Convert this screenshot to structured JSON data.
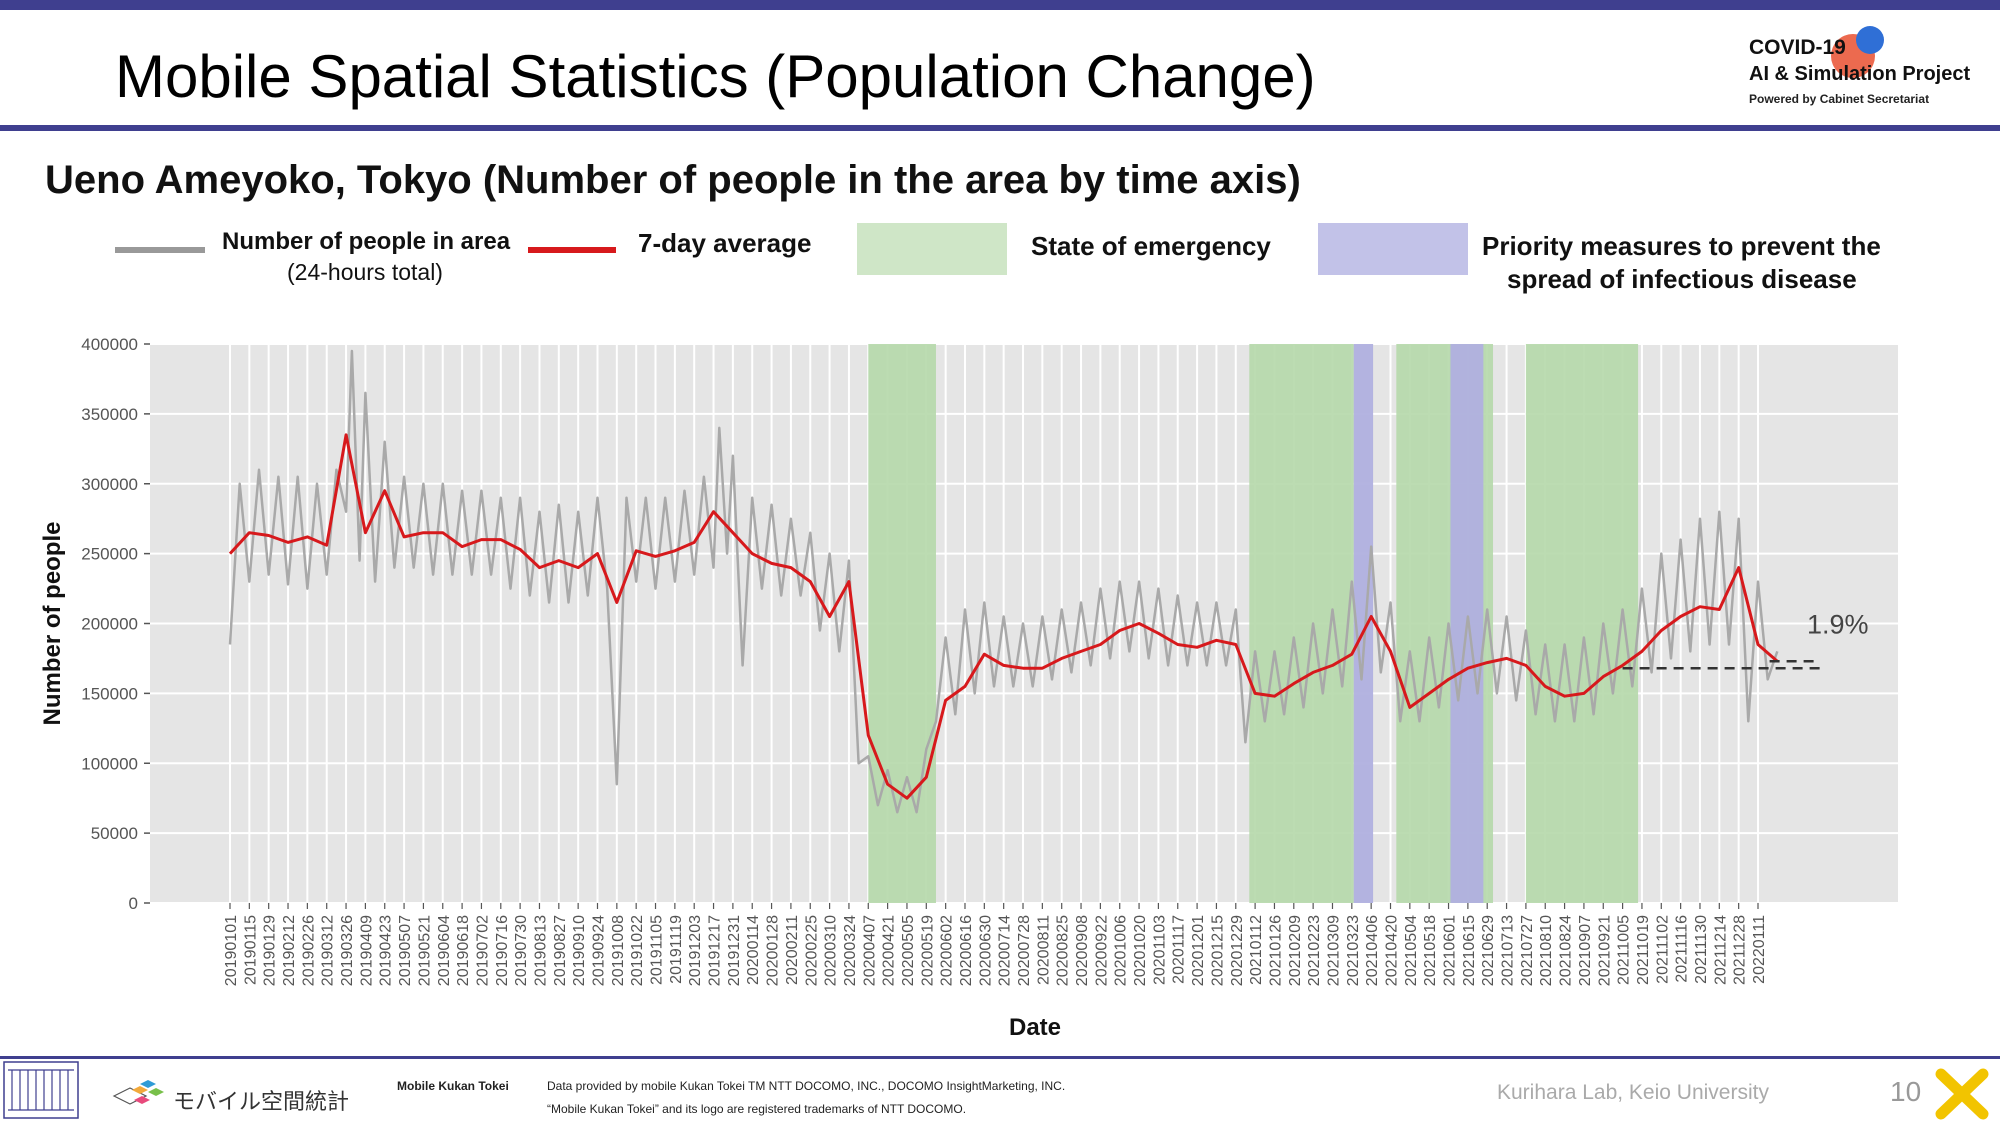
{
  "header": {
    "title": "Mobile Spatial Statistics (Population Change)",
    "logo_line1": "COVID-19",
    "logo_line2": "AI & Simulation Project",
    "logo_line3": "Powered by Cabinet Secretariat"
  },
  "subtitle": "Ueno Ameyoko, Tokyo (Number of people in the area by time axis)",
  "legend": {
    "people_label": "Number of people in area",
    "people_sub": "(24-hours total)",
    "avg_label": "7-day average",
    "emergency_label": "State of emergency",
    "priority_label_1": "Priority measures to prevent the",
    "priority_label_2": "spread of infectious disease"
  },
  "colors": {
    "daily_line": "#a9a9a9",
    "avg_line": "#d7191c",
    "emergency": "#b5d8aa",
    "priority": "#b0b0df",
    "plot_bg": "#e5e5e5",
    "accent": "#3f3f8f"
  },
  "chart_data": {
    "type": "line",
    "xlabel": "Date",
    "ylabel": "Number of people",
    "ylim": [
      0,
      400000
    ],
    "yticks": [
      "0",
      "50000",
      "100000",
      "150000",
      "200000",
      "250000",
      "300000",
      "350000",
      "400000"
    ],
    "grid": true,
    "annotation": "1.9%",
    "baseline_value": 168000,
    "xticks": [
      "20190101",
      "20190115",
      "20190129",
      "20190212",
      "20190226",
      "20190312",
      "20190326",
      "20190409",
      "20190423",
      "20190507",
      "20190521",
      "20190604",
      "20190618",
      "20190702",
      "20190716",
      "20190730",
      "20190813",
      "20190827",
      "20190910",
      "20190924",
      "20191008",
      "20191022",
      "20191105",
      "20191119",
      "20191203",
      "20191217",
      "20191231",
      "20200114",
      "20200128",
      "20200211",
      "20200225",
      "20200310",
      "20200324",
      "20200407",
      "20200421",
      "20200505",
      "20200519",
      "20200602",
      "20200616",
      "20200630",
      "20200714",
      "20200728",
      "20200811",
      "20200825",
      "20200908",
      "20200922",
      "20201006",
      "20201020",
      "20201103",
      "20201117",
      "20201201",
      "20201215",
      "20201229",
      "20210112",
      "20210126",
      "20210209",
      "20210223",
      "20210309",
      "20210323",
      "20210406",
      "20210420",
      "20210504",
      "20210518",
      "20210601",
      "20210615",
      "20210629",
      "20210713",
      "20210727",
      "20210810",
      "20210824",
      "20210907",
      "20210921",
      "20211005",
      "20211019",
      "20211102",
      "20211116",
      "20211130",
      "20211214",
      "20211228",
      "20220111"
    ],
    "emergency_periods": [
      [
        33.0,
        36.5
      ],
      [
        52.7,
        58.1
      ],
      [
        60.3,
        65.3
      ],
      [
        67.0,
        72.8
      ]
    ],
    "priority_periods": [
      [
        58.1,
        59.1
      ],
      [
        63.1,
        64.8
      ]
    ],
    "series": [
      {
        "name": "7-day average",
        "points": [
          [
            0,
            250000
          ],
          [
            1,
            265000
          ],
          [
            2,
            263000
          ],
          [
            3,
            258000
          ],
          [
            4,
            262000
          ],
          [
            5,
            256000
          ],
          [
            6,
            335000
          ],
          [
            7,
            265000
          ],
          [
            8,
            295000
          ],
          [
            9,
            262000
          ],
          [
            10,
            265000
          ],
          [
            11,
            265000
          ],
          [
            12,
            255000
          ],
          [
            13,
            260000
          ],
          [
            14,
            260000
          ],
          [
            15,
            253000
          ],
          [
            16,
            240000
          ],
          [
            17,
            245000
          ],
          [
            18,
            240000
          ],
          [
            19,
            250000
          ],
          [
            20,
            215000
          ],
          [
            21,
            252000
          ],
          [
            22,
            248000
          ],
          [
            23,
            252000
          ],
          [
            24,
            258000
          ],
          [
            25,
            280000
          ],
          [
            26,
            265000
          ],
          [
            27,
            250000
          ],
          [
            28,
            243000
          ],
          [
            29,
            240000
          ],
          [
            30,
            230000
          ],
          [
            31,
            205000
          ],
          [
            32,
            230000
          ],
          [
            33,
            120000
          ],
          [
            34,
            85000
          ],
          [
            35,
            75000
          ],
          [
            36,
            90000
          ],
          [
            37,
            145000
          ],
          [
            38,
            155000
          ],
          [
            39,
            178000
          ],
          [
            40,
            170000
          ],
          [
            41,
            168000
          ],
          [
            42,
            168000
          ],
          [
            43,
            175000
          ],
          [
            44,
            180000
          ],
          [
            45,
            185000
          ],
          [
            46,
            195000
          ],
          [
            47,
            200000
          ],
          [
            48,
            193000
          ],
          [
            49,
            185000
          ],
          [
            50,
            183000
          ],
          [
            51,
            188000
          ],
          [
            52,
            185000
          ],
          [
            53,
            150000
          ],
          [
            54,
            148000
          ],
          [
            55,
            157000
          ],
          [
            56,
            165000
          ],
          [
            57,
            170000
          ],
          [
            58,
            178000
          ],
          [
            59,
            205000
          ],
          [
            60,
            180000
          ],
          [
            61,
            140000
          ],
          [
            62,
            150000
          ],
          [
            63,
            160000
          ],
          [
            64,
            168000
          ],
          [
            65,
            172000
          ],
          [
            66,
            175000
          ],
          [
            67,
            170000
          ],
          [
            68,
            155000
          ],
          [
            69,
            148000
          ],
          [
            70,
            150000
          ],
          [
            71,
            162000
          ],
          [
            72,
            170000
          ],
          [
            73,
            180000
          ],
          [
            74,
            195000
          ],
          [
            75,
            205000
          ],
          [
            76,
            212000
          ],
          [
            77,
            210000
          ],
          [
            78,
            240000
          ],
          [
            79,
            185000
          ],
          [
            80,
            173000
          ]
        ]
      },
      {
        "name": "Number of people in area",
        "points": [
          [
            0,
            185000
          ],
          [
            0.5,
            300000
          ],
          [
            1,
            230000
          ],
          [
            1.5,
            310000
          ],
          [
            2,
            235000
          ],
          [
            2.5,
            305000
          ],
          [
            3,
            228000
          ],
          [
            3.5,
            305000
          ],
          [
            4,
            225000
          ],
          [
            4.5,
            300000
          ],
          [
            5,
            235000
          ],
          [
            5.5,
            310000
          ],
          [
            6,
            280000
          ],
          [
            6.3,
            395000
          ],
          [
            6.7,
            245000
          ],
          [
            7,
            365000
          ],
          [
            7.5,
            230000
          ],
          [
            8,
            330000
          ],
          [
            8.5,
            240000
          ],
          [
            9,
            305000
          ],
          [
            9.5,
            240000
          ],
          [
            10,
            300000
          ],
          [
            10.5,
            235000
          ],
          [
            11,
            300000
          ],
          [
            11.5,
            235000
          ],
          [
            12,
            295000
          ],
          [
            12.5,
            235000
          ],
          [
            13,
            295000
          ],
          [
            13.5,
            235000
          ],
          [
            14,
            290000
          ],
          [
            14.5,
            225000
          ],
          [
            15,
            290000
          ],
          [
            15.5,
            220000
          ],
          [
            16,
            280000
          ],
          [
            16.5,
            215000
          ],
          [
            17,
            285000
          ],
          [
            17.5,
            215000
          ],
          [
            18,
            280000
          ],
          [
            18.5,
            220000
          ],
          [
            19,
            290000
          ],
          [
            19.5,
            225000
          ],
          [
            20,
            85000
          ],
          [
            20.5,
            290000
          ],
          [
            21,
            230000
          ],
          [
            21.5,
            290000
          ],
          [
            22,
            225000
          ],
          [
            22.5,
            290000
          ],
          [
            23,
            230000
          ],
          [
            23.5,
            295000
          ],
          [
            24,
            235000
          ],
          [
            24.5,
            305000
          ],
          [
            25,
            240000
          ],
          [
            25.3,
            340000
          ],
          [
            25.7,
            250000
          ],
          [
            26,
            320000
          ],
          [
            26.5,
            170000
          ],
          [
            27,
            290000
          ],
          [
            27.5,
            225000
          ],
          [
            28,
            285000
          ],
          [
            28.5,
            220000
          ],
          [
            29,
            275000
          ],
          [
            29.5,
            220000
          ],
          [
            30,
            265000
          ],
          [
            30.5,
            195000
          ],
          [
            31,
            250000
          ],
          [
            31.5,
            180000
          ],
          [
            32,
            245000
          ],
          [
            32.5,
            100000
          ],
          [
            33,
            105000
          ],
          [
            33.5,
            70000
          ],
          [
            34,
            95000
          ],
          [
            34.5,
            65000
          ],
          [
            35,
            90000
          ],
          [
            35.5,
            65000
          ],
          [
            36,
            110000
          ],
          [
            36.5,
            130000
          ],
          [
            37,
            190000
          ],
          [
            37.5,
            135000
          ],
          [
            38,
            210000
          ],
          [
            38.5,
            150000
          ],
          [
            39,
            215000
          ],
          [
            39.5,
            155000
          ],
          [
            40,
            205000
          ],
          [
            40.5,
            155000
          ],
          [
            41,
            200000
          ],
          [
            41.5,
            155000
          ],
          [
            42,
            205000
          ],
          [
            42.5,
            160000
          ],
          [
            43,
            210000
          ],
          [
            43.5,
            165000
          ],
          [
            44,
            215000
          ],
          [
            44.5,
            170000
          ],
          [
            45,
            225000
          ],
          [
            45.5,
            175000
          ],
          [
            46,
            230000
          ],
          [
            46.5,
            180000
          ],
          [
            47,
            230000
          ],
          [
            47.5,
            175000
          ],
          [
            48,
            225000
          ],
          [
            48.5,
            170000
          ],
          [
            49,
            220000
          ],
          [
            49.5,
            170000
          ],
          [
            50,
            215000
          ],
          [
            50.5,
            170000
          ],
          [
            51,
            215000
          ],
          [
            51.5,
            170000
          ],
          [
            52,
            210000
          ],
          [
            52.5,
            115000
          ],
          [
            53,
            180000
          ],
          [
            53.5,
            130000
          ],
          [
            54,
            180000
          ],
          [
            54.5,
            135000
          ],
          [
            55,
            190000
          ],
          [
            55.5,
            140000
          ],
          [
            56,
            200000
          ],
          [
            56.5,
            150000
          ],
          [
            57,
            210000
          ],
          [
            57.5,
            155000
          ],
          [
            58,
            230000
          ],
          [
            58.5,
            160000
          ],
          [
            59,
            255000
          ],
          [
            59.5,
            165000
          ],
          [
            60,
            215000
          ],
          [
            60.5,
            130000
          ],
          [
            61,
            180000
          ],
          [
            61.5,
            130000
          ],
          [
            62,
            190000
          ],
          [
            62.5,
            140000
          ],
          [
            63,
            200000
          ],
          [
            63.5,
            145000
          ],
          [
            64,
            205000
          ],
          [
            64.5,
            150000
          ],
          [
            65,
            210000
          ],
          [
            65.5,
            150000
          ],
          [
            66,
            205000
          ],
          [
            66.5,
            145000
          ],
          [
            67,
            195000
          ],
          [
            67.5,
            135000
          ],
          [
            68,
            185000
          ],
          [
            68.5,
            130000
          ],
          [
            69,
            185000
          ],
          [
            69.5,
            130000
          ],
          [
            70,
            190000
          ],
          [
            70.5,
            135000
          ],
          [
            71,
            200000
          ],
          [
            71.5,
            150000
          ],
          [
            72,
            210000
          ],
          [
            72.5,
            155000
          ],
          [
            73,
            225000
          ],
          [
            73.5,
            165000
          ],
          [
            74,
            250000
          ],
          [
            74.5,
            175000
          ],
          [
            75,
            260000
          ],
          [
            75.5,
            180000
          ],
          [
            76,
            275000
          ],
          [
            76.5,
            185000
          ],
          [
            77,
            280000
          ],
          [
            77.5,
            185000
          ],
          [
            78,
            275000
          ],
          [
            78.5,
            130000
          ],
          [
            79,
            230000
          ],
          [
            79.5,
            160000
          ],
          [
            80,
            180000
          ]
        ]
      }
    ]
  },
  "footer": {
    "brand_jp": "モバイル空間統計",
    "brand_en": "Mobile Kukan Tokei",
    "note1": "Data provided by mobile Kukan Tokei TM NTT DOCOMO, INC., DOCOMO InsightMarketing, INC.",
    "note2": "“Mobile Kukan Tokei” and its logo are registered trademarks of NTT DOCOMO.",
    "credit": "Kurihara Lab, Keio University",
    "page": "10"
  }
}
